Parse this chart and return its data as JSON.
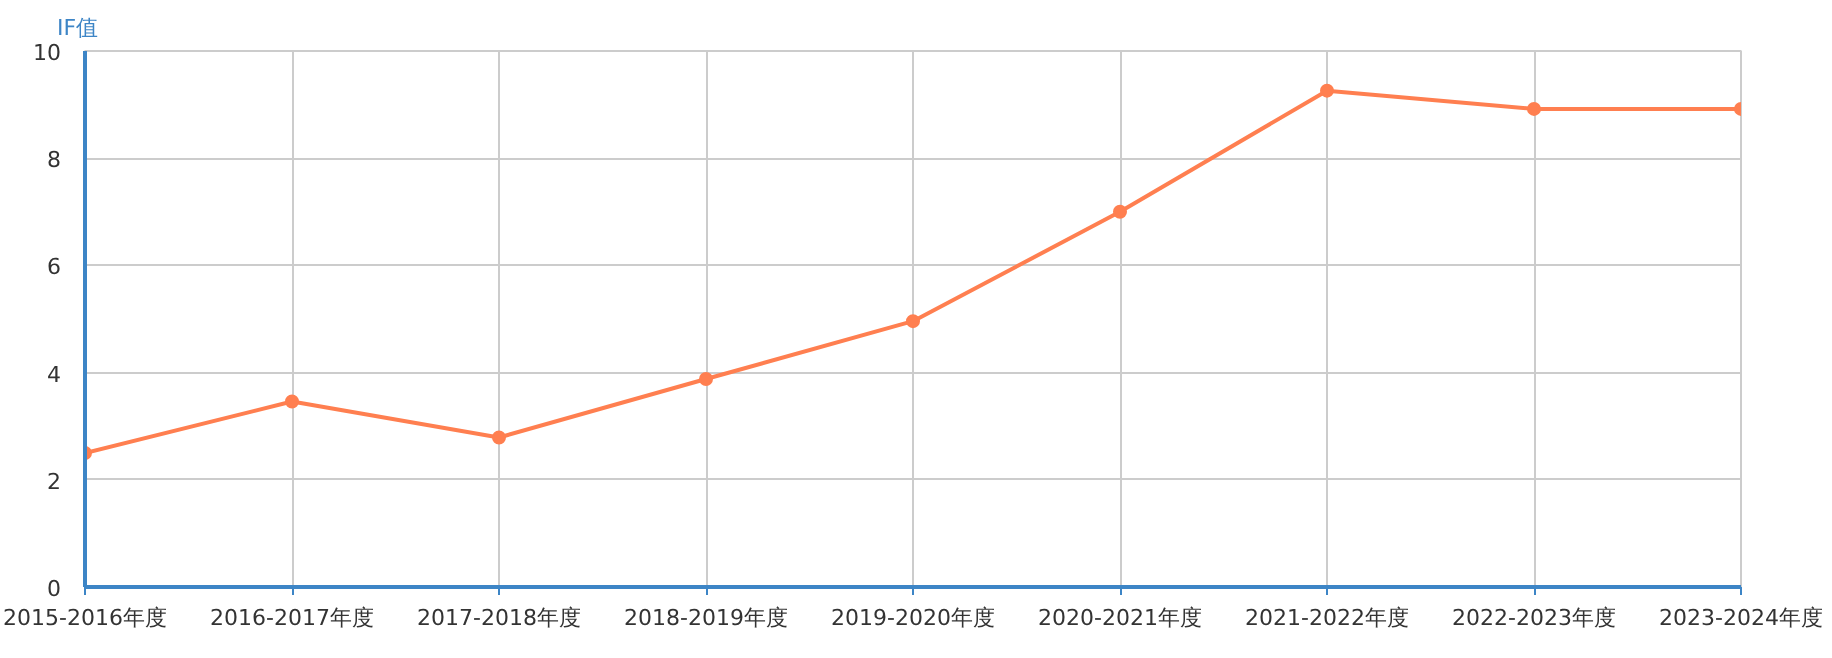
{
  "chart_data": {
    "type": "line",
    "ylabel": "IF值",
    "categories": [
      "2015-2016年度",
      "2016-2017年度",
      "2017-2018年度",
      "2018-2019年度",
      "2019-2020年度",
      "2020-2021年度",
      "2021-2022年度",
      "2022-2023年度",
      "2023-2024年度"
    ],
    "series": [
      {
        "color": "#ff7f50",
        "values": [
          2.5,
          3.46,
          2.79,
          3.88,
          4.96,
          7.0,
          9.26,
          8.92,
          8.92
        ]
      }
    ],
    "ylim": [
      0,
      10
    ],
    "yticks": [
      0,
      2,
      4,
      6,
      8,
      10
    ],
    "grid": true,
    "marker": "circle",
    "line_style": "solid"
  }
}
